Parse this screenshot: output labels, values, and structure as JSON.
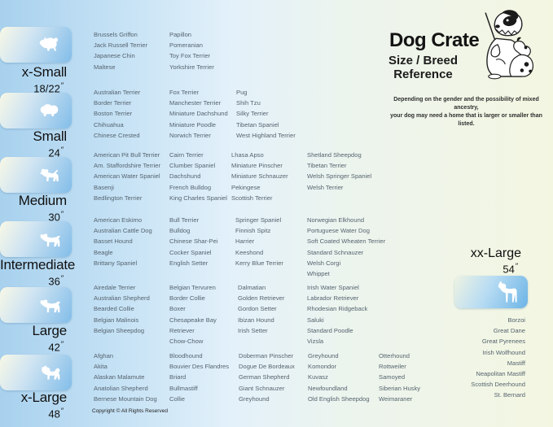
{
  "header": {
    "title": "Dog Crate",
    "subtitle_line1": "Size / Breed",
    "subtitle_line2": "Reference",
    "illustration": "teacher-dog-with-puppy",
    "note_line1": "Depending on the gender and the possibility of mixed ancestry,",
    "note_line2": "your dog may need a home that is larger or smaller than listed."
  },
  "sizes": [
    {
      "name": "x-Small",
      "dimension": "18/22",
      "unit": "″",
      "icon": "pomeranian-silhouette",
      "columns": [
        [
          "Brussels Griffon",
          "Jack Russell Terrier",
          "Japanese Chin",
          "Maltese"
        ],
        [
          "Papillon",
          "Pomeranian",
          "Toy Fox Terrier",
          "Yorkshire Terrier"
        ]
      ]
    },
    {
      "name": "Small",
      "dimension": "24",
      "unit": "″",
      "icon": "shih-tzu-silhouette",
      "columns": [
        [
          "Australian Terrier",
          "Border Terrier",
          "Boston Terrier",
          "Chihuahua",
          "Chinese Crested"
        ],
        [
          "Fox Terrier",
          "Manchester Terrier",
          "Miniature Dachshund",
          "Miniature Poodle",
          "Norwich Terrier"
        ],
        [
          "Pug",
          "Shih Tzu",
          "Silky Terrier",
          "Tibetan Spaniel",
          "West Highland Terrier"
        ]
      ]
    },
    {
      "name": "Medium",
      "dimension": "30",
      "unit": "″",
      "icon": "west-highland-terrier-silhouette",
      "columns": [
        [
          "American Pit Bull Terrier",
          "Am. Staffordshire Terrier",
          "American Water Spaniel",
          "Basenji",
          "Bedlington Terrier"
        ],
        [
          "Cairn Terrier",
          "Clumber Spaniel",
          "Dachshund",
          "French Bulldog",
          "King Charles Spaniel"
        ],
        [
          "Lhasa Apso",
          "Miniature Pinscher",
          "Miniature Schnauzer",
          "Pekingese",
          "Scottish Terrier"
        ],
        [
          "Shetland Sheepdog",
          "Tibetan Terrier",
          "Welsh Springer Spaniel",
          "Welsh Terrier"
        ]
      ]
    },
    {
      "name": "Intermediate",
      "dimension": "36",
      "unit": "″",
      "icon": "spaniel-silhouette",
      "columns": [
        [
          "American Eskimo",
          "Australian Cattle Dog",
          "Basset Hound",
          "Beagle",
          "Brittany Spaniel"
        ],
        [
          "Bull Terrier",
          "Bulldog",
          "Chinese Shar-Pei",
          "Cocker Spaniel",
          "English Setter"
        ],
        [
          "Springer Spaniel",
          "Finnish Spitz",
          "Harrier",
          "Keeshond",
          "Kerry Blue Terrier"
        ],
        [
          "Norwegian Elkhound",
          "Portuguese Water Dog",
          "Soft Coated Wheaten Terrier",
          "Standard Schnauzer",
          "Welsh Corgi",
          "Whippet"
        ]
      ]
    },
    {
      "name": "Large",
      "dimension": "42",
      "unit": "″",
      "icon": "retriever-silhouette",
      "columns": [
        [
          "Airedale Terrier",
          "Australian Shepherd",
          "Bearded Collie",
          "Belgian Malinois",
          "Belgian Sheepdog"
        ],
        [
          "Belgian Tervuren",
          "Border Collie",
          "Boxer",
          "Chesapeake Bay Retriever",
          "Chow-Chow"
        ],
        [
          "Dalmatian",
          "Golden Retriever",
          "Gordon Setter",
          "Ibizan Hound",
          "Irish Setter"
        ],
        [
          "Irish Water Spaniel",
          "Labrador Retriever",
          "Rhodesian Ridgeback",
          "Saluki",
          "Standard Poodle",
          "Vizsla"
        ]
      ]
    },
    {
      "name": "x-Large",
      "dimension": "48",
      "unit": "″",
      "icon": "akita-silhouette",
      "columns": [
        [
          "Afghan",
          "Akita",
          "Alaskan Malamute",
          "Anatolian Shepherd",
          "Bernese Mountain Dog"
        ],
        [
          "Bloodhound",
          "Bouvier Des Flandres",
          "Briard",
          "Bullmastiff",
          "Collie"
        ],
        [
          "Doberman Pinscher",
          "Dogue De Bordeaux",
          "German Shepherd",
          "Giant Schnauzer",
          "Greyhound"
        ],
        [
          "Greyhound",
          "Komondor",
          "Kuvasz",
          "Newfoundland",
          "Old English Sheepdog"
        ],
        [
          "Otterhound",
          "Rottweiler",
          "Samoyed",
          "Siberian Husky",
          "Weimaraner"
        ]
      ]
    },
    {
      "name": "xx-Large",
      "dimension": "54",
      "unit": "″",
      "icon": "great-dane-silhouette",
      "breeds": [
        "Borzoi",
        "Great Dane",
        "Great Pyrenees",
        "Irish Wolfhound",
        "Mastiff",
        "Neapolitan Mastiff",
        "Scottish Deerhound",
        "St. Bernard"
      ]
    }
  ],
  "footer": {
    "copyright": "Copyright © All Rights Reserved"
  },
  "colors": {
    "background_left": "#a8d1ee",
    "background_right": "#f3f6e1",
    "tile_gradient_start": "#f8f8e6",
    "tile_gradient_end": "#82bde9",
    "breed_text": "#56646f",
    "heading_text": "#141414"
  }
}
